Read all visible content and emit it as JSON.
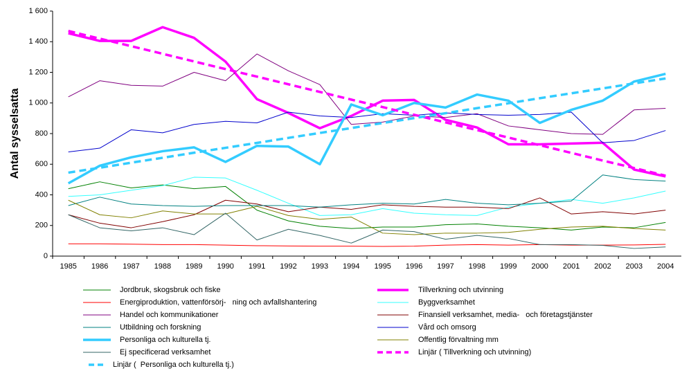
{
  "chart_data": {
    "type": "line",
    "y_label": "Antal sysselsatta",
    "categories": [
      "1985",
      "1986",
      "1987",
      "1988",
      "1989",
      "1990",
      "1991",
      "1992",
      "1993",
      "1994",
      "1995",
      "1996",
      "1997",
      "1998",
      "1999",
      "2000",
      "2001",
      "2002",
      "2003",
      "2004"
    ],
    "ylim": [
      0,
      1600
    ],
    "yticks": [
      0,
      200,
      400,
      600,
      800,
      {
        "value": 1000,
        "label": "1 000"
      },
      {
        "value": 1200,
        "label": "1 200"
      },
      {
        "value": 1400,
        "label": "1 400"
      },
      {
        "value": 1600,
        "label": "1 600"
      }
    ],
    "series": [
      {
        "name": "Jordbruk, skogsbruk och fiske",
        "color": "#008000",
        "width": 1,
        "values": [
          440,
          485,
          445,
          465,
          440,
          455,
          300,
          230,
          195,
          180,
          190,
          190,
          205,
          210,
          195,
          185,
          170,
          190,
          185,
          220
        ]
      },
      {
        "name": "Tillverkning och utvinning",
        "color": "#ff00ff",
        "width": 3.5,
        "values": [
          1455,
          1405,
          1405,
          1495,
          1425,
          1270,
          1025,
          935,
          835,
          915,
          1015,
          1020,
          890,
          840,
          730,
          730,
          735,
          740,
          565,
          520
        ]
      },
      {
        "name": "Energiproduktion, vattenförsörj-   ning och avfallshantering",
        "color": "#ff0000",
        "width": 1,
        "values": [
          80,
          80,
          78,
          75,
          75,
          72,
          68,
          66,
          65,
          65,
          63,
          65,
          72,
          75,
          72,
          75,
          72,
          72,
          73,
          77
        ]
      },
      {
        "name": "Byggverksamhet",
        "color": "#33ffff",
        "width": 1,
        "values": [
          390,
          400,
          430,
          460,
          515,
          510,
          430,
          345,
          265,
          270,
          310,
          280,
          270,
          265,
          320,
          345,
          370,
          345,
          380,
          425
        ]
      },
      {
        "name": "Handel och kommunikationer",
        "color": "#800080",
        "width": 1,
        "values": [
          1040,
          1145,
          1115,
          1110,
          1200,
          1145,
          1320,
          1210,
          1120,
          860,
          875,
          915,
          905,
          930,
          850,
          825,
          800,
          795,
          955,
          965
        ]
      },
      {
        "name": "Finansiell verksamhet, media-   och företagstjänster",
        "color": "#800000",
        "width": 1,
        "values": [
          270,
          215,
          185,
          225,
          270,
          365,
          340,
          290,
          320,
          305,
          335,
          325,
          320,
          320,
          310,
          380,
          275,
          290,
          275,
          300
        ]
      },
      {
        "name": "Utbildning och forskning",
        "color": "#008080",
        "width": 1,
        "values": [
          330,
          385,
          340,
          330,
          325,
          330,
          330,
          330,
          320,
          335,
          345,
          340,
          370,
          345,
          335,
          345,
          360,
          530,
          500,
          490
        ]
      },
      {
        "name": "Vård och omsorg",
        "color": "#0000cc",
        "width": 1,
        "values": [
          680,
          705,
          825,
          805,
          860,
          880,
          870,
          940,
          915,
          905,
          930,
          920,
          935,
          925,
          920,
          925,
          940,
          740,
          755,
          820
        ]
      },
      {
        "name": "Personliga och kulturella tj.",
        "color": "#33ccff",
        "width": 3.5,
        "values": [
          475,
          590,
          645,
          685,
          710,
          615,
          720,
          715,
          600,
          990,
          920,
          1000,
          970,
          1055,
          1015,
          870,
          955,
          1015,
          1140,
          1190
        ]
      },
      {
        "name": "Offentlig förvaltning mm",
        "color": "#808000",
        "width": 1,
        "values": [
          365,
          270,
          250,
          295,
          275,
          275,
          325,
          265,
          240,
          255,
          150,
          140,
          150,
          150,
          155,
          175,
          190,
          195,
          180,
          170
        ]
      },
      {
        "name": "Ej specificerad verksamhet",
        "color": "#336666",
        "width": 1,
        "values": [
          270,
          185,
          165,
          185,
          140,
          280,
          105,
          175,
          135,
          85,
          170,
          160,
          110,
          135,
          115,
          75,
          75,
          70,
          50,
          60
        ]
      },
      {
        "name": "Linjär ( Tillverkning och utvinning)",
        "color": "#ff00ff",
        "width": 3.5,
        "dash": true,
        "values": [
          1470,
          1420,
          1371,
          1321,
          1271,
          1221,
          1172,
          1122,
          1072,
          1022,
          973,
          923,
          873,
          823,
          774,
          724,
          674,
          624,
          575,
          525
        ]
      },
      {
        "name": "Linjär (  Personliga och kulturella tj.)",
        "color": "#33ccff",
        "width": 3.5,
        "dash": true,
        "values": [
          545,
          577,
          610,
          642,
          675,
          707,
          739,
          772,
          804,
          836,
          869,
          901,
          933,
          966,
          998,
          1031,
          1063,
          1095,
          1128,
          1160
        ]
      }
    ]
  }
}
